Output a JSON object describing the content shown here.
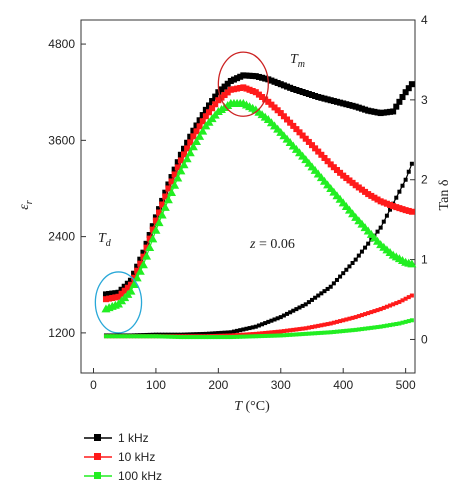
{
  "chart_data": {
    "type": "scatter",
    "title": "",
    "xlabel": "T (°C)",
    "xlabel_italic": "T",
    "xlabel_rest": " (°C)",
    "ylabel_left": "ε_r",
    "ylabel_left_main": "ε",
    "ylabel_left_sub": "r",
    "ylabel_right": "Tan δ",
    "xlim": [
      -20,
      515
    ],
    "ylim_left": [
      700,
      5100
    ],
    "ylim_right": [
      -0.42,
      4.0
    ],
    "x_ticks": [
      0,
      100,
      200,
      300,
      400,
      500
    ],
    "y_left_ticks": [
      1200,
      2400,
      3600,
      4800
    ],
    "y_right_ticks": [
      0,
      1,
      2,
      3,
      4
    ],
    "grid": false,
    "legend_position": "bottom-left below plot",
    "annotations": {
      "td_main": "T",
      "td_sub": "d",
      "tm_main": "T",
      "tm_sub": "m",
      "z_main": "z",
      "z_rest": " = 0.06"
    },
    "series_permittivity": [
      {
        "name": "1 kHz",
        "color": "#000000",
        "marker": "square",
        "points": [
          [
            20,
            1680
          ],
          [
            40,
            1700
          ],
          [
            60,
            1850
          ],
          [
            80,
            2200
          ],
          [
            100,
            2640
          ],
          [
            120,
            3050
          ],
          [
            140,
            3420
          ],
          [
            160,
            3720
          ],
          [
            180,
            3980
          ],
          [
            200,
            4200
          ],
          [
            220,
            4340
          ],
          [
            240,
            4410
          ],
          [
            260,
            4400
          ],
          [
            280,
            4360
          ],
          [
            300,
            4300
          ],
          [
            320,
            4240
          ],
          [
            340,
            4190
          ],
          [
            360,
            4140
          ],
          [
            380,
            4100
          ],
          [
            400,
            4060
          ],
          [
            420,
            4020
          ],
          [
            440,
            3970
          ],
          [
            460,
            3940
          ],
          [
            480,
            3960
          ],
          [
            500,
            4200
          ],
          [
            510,
            4300
          ]
        ]
      },
      {
        "name": "10 kHz",
        "color": "#ff1a1a",
        "marker": "square",
        "points": [
          [
            20,
            1620
          ],
          [
            40,
            1650
          ],
          [
            60,
            1800
          ],
          [
            80,
            2150
          ],
          [
            100,
            2600
          ],
          [
            120,
            3000
          ],
          [
            140,
            3350
          ],
          [
            160,
            3650
          ],
          [
            180,
            3900
          ],
          [
            200,
            4100
          ],
          [
            220,
            4230
          ],
          [
            240,
            4260
          ],
          [
            260,
            4200
          ],
          [
            280,
            4080
          ],
          [
            300,
            3940
          ],
          [
            320,
            3780
          ],
          [
            340,
            3620
          ],
          [
            360,
            3460
          ],
          [
            380,
            3300
          ],
          [
            400,
            3160
          ],
          [
            420,
            3040
          ],
          [
            440,
            2930
          ],
          [
            460,
            2840
          ],
          [
            480,
            2780
          ],
          [
            500,
            2730
          ],
          [
            510,
            2710
          ]
        ]
      },
      {
        "name": "100 kHz",
        "color": "#22ee22",
        "marker": "triangle",
        "points": [
          [
            20,
            1500
          ],
          [
            40,
            1560
          ],
          [
            60,
            1720
          ],
          [
            80,
            2050
          ],
          [
            100,
            2480
          ],
          [
            120,
            2860
          ],
          [
            140,
            3220
          ],
          [
            160,
            3520
          ],
          [
            180,
            3780
          ],
          [
            200,
            3960
          ],
          [
            220,
            4060
          ],
          [
            240,
            4060
          ],
          [
            260,
            3980
          ],
          [
            280,
            3860
          ],
          [
            300,
            3700
          ],
          [
            320,
            3530
          ],
          [
            340,
            3360
          ],
          [
            360,
            3180
          ],
          [
            380,
            3000
          ],
          [
            400,
            2820
          ],
          [
            420,
            2640
          ],
          [
            440,
            2470
          ],
          [
            460,
            2300
          ],
          [
            480,
            2170
          ],
          [
            500,
            2080
          ],
          [
            510,
            2060
          ]
        ]
      }
    ],
    "series_tan_delta": [
      {
        "name": "1 kHz",
        "color": "#000000",
        "marker": "square",
        "points": [
          [
            20,
            0.05
          ],
          [
            60,
            0.05
          ],
          [
            100,
            0.06
          ],
          [
            140,
            0.06
          ],
          [
            180,
            0.07
          ],
          [
            220,
            0.09
          ],
          [
            260,
            0.16
          ],
          [
            300,
            0.28
          ],
          [
            340,
            0.44
          ],
          [
            380,
            0.66
          ],
          [
            420,
            1.0
          ],
          [
            460,
            1.4
          ],
          [
            480,
            1.7
          ],
          [
            500,
            2.0
          ],
          [
            510,
            2.2
          ]
        ]
      },
      {
        "name": "10 kHz",
        "color": "#ff1a1a",
        "marker": "square",
        "points": [
          [
            20,
            0.04
          ],
          [
            60,
            0.04
          ],
          [
            100,
            0.04
          ],
          [
            140,
            0.04
          ],
          [
            180,
            0.04
          ],
          [
            220,
            0.05
          ],
          [
            260,
            0.07
          ],
          [
            300,
            0.1
          ],
          [
            340,
            0.14
          ],
          [
            380,
            0.2
          ],
          [
            420,
            0.28
          ],
          [
            460,
            0.38
          ],
          [
            490,
            0.47
          ],
          [
            510,
            0.55
          ]
        ]
      },
      {
        "name": "100 kHz",
        "color": "#22ee22",
        "marker": "square",
        "points": [
          [
            20,
            0.04
          ],
          [
            60,
            0.04
          ],
          [
            100,
            0.04
          ],
          [
            140,
            0.03
          ],
          [
            180,
            0.03
          ],
          [
            220,
            0.03
          ],
          [
            260,
            0.04
          ],
          [
            300,
            0.05
          ],
          [
            340,
            0.07
          ],
          [
            380,
            0.09
          ],
          [
            420,
            0.12
          ],
          [
            460,
            0.16
          ],
          [
            490,
            0.2
          ],
          [
            510,
            0.24
          ]
        ]
      }
    ],
    "highlights": [
      {
        "label": "Td",
        "color": "#29a8d8",
        "center": [
          40,
          1580
        ],
        "rx_data": 37,
        "ry_data": 380
      },
      {
        "label": "Tm",
        "color": "#cc2222",
        "center": [
          240,
          4300
        ],
        "rx_data": 40,
        "ry_data": 400
      }
    ],
    "legend": [
      {
        "label": "1 kHz",
        "color": "#000000"
      },
      {
        "label": "10 kHz",
        "color": "#ff1a1a"
      },
      {
        "label": "100 kHz",
        "color": "#22ee22"
      }
    ]
  }
}
